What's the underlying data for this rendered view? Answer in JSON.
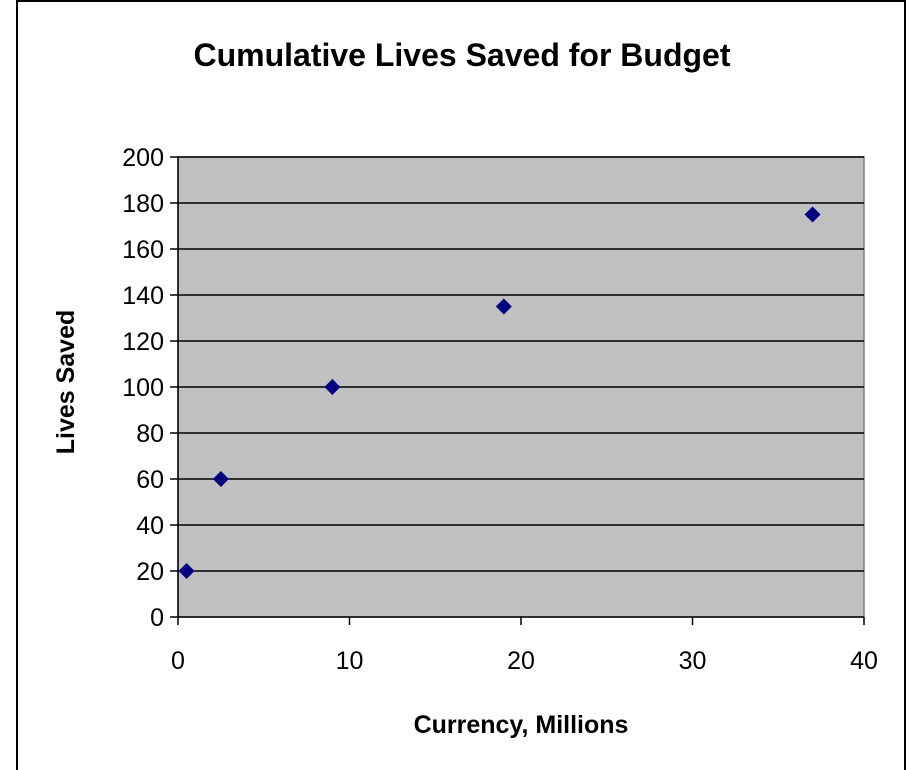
{
  "chart_data": {
    "type": "scatter",
    "title": "Cumulative Lives Saved for Budget",
    "xlabel": "Currency, Millions",
    "ylabel": "Lives Saved",
    "xlim": [
      0,
      40
    ],
    "ylim": [
      0,
      200
    ],
    "x_ticks": [
      0,
      10,
      20,
      30,
      40
    ],
    "y_ticks": [
      0,
      20,
      40,
      60,
      80,
      100,
      120,
      140,
      160,
      180,
      200
    ],
    "grid": "horizontal",
    "legend": "none",
    "plot_background": "#C0C0C0",
    "marker": "diamond",
    "marker_color": "#000080",
    "series": [
      {
        "x": [
          0.5,
          2.5,
          9,
          19,
          37
        ],
        "y": [
          20,
          60,
          100,
          135,
          175
        ]
      }
    ]
  }
}
